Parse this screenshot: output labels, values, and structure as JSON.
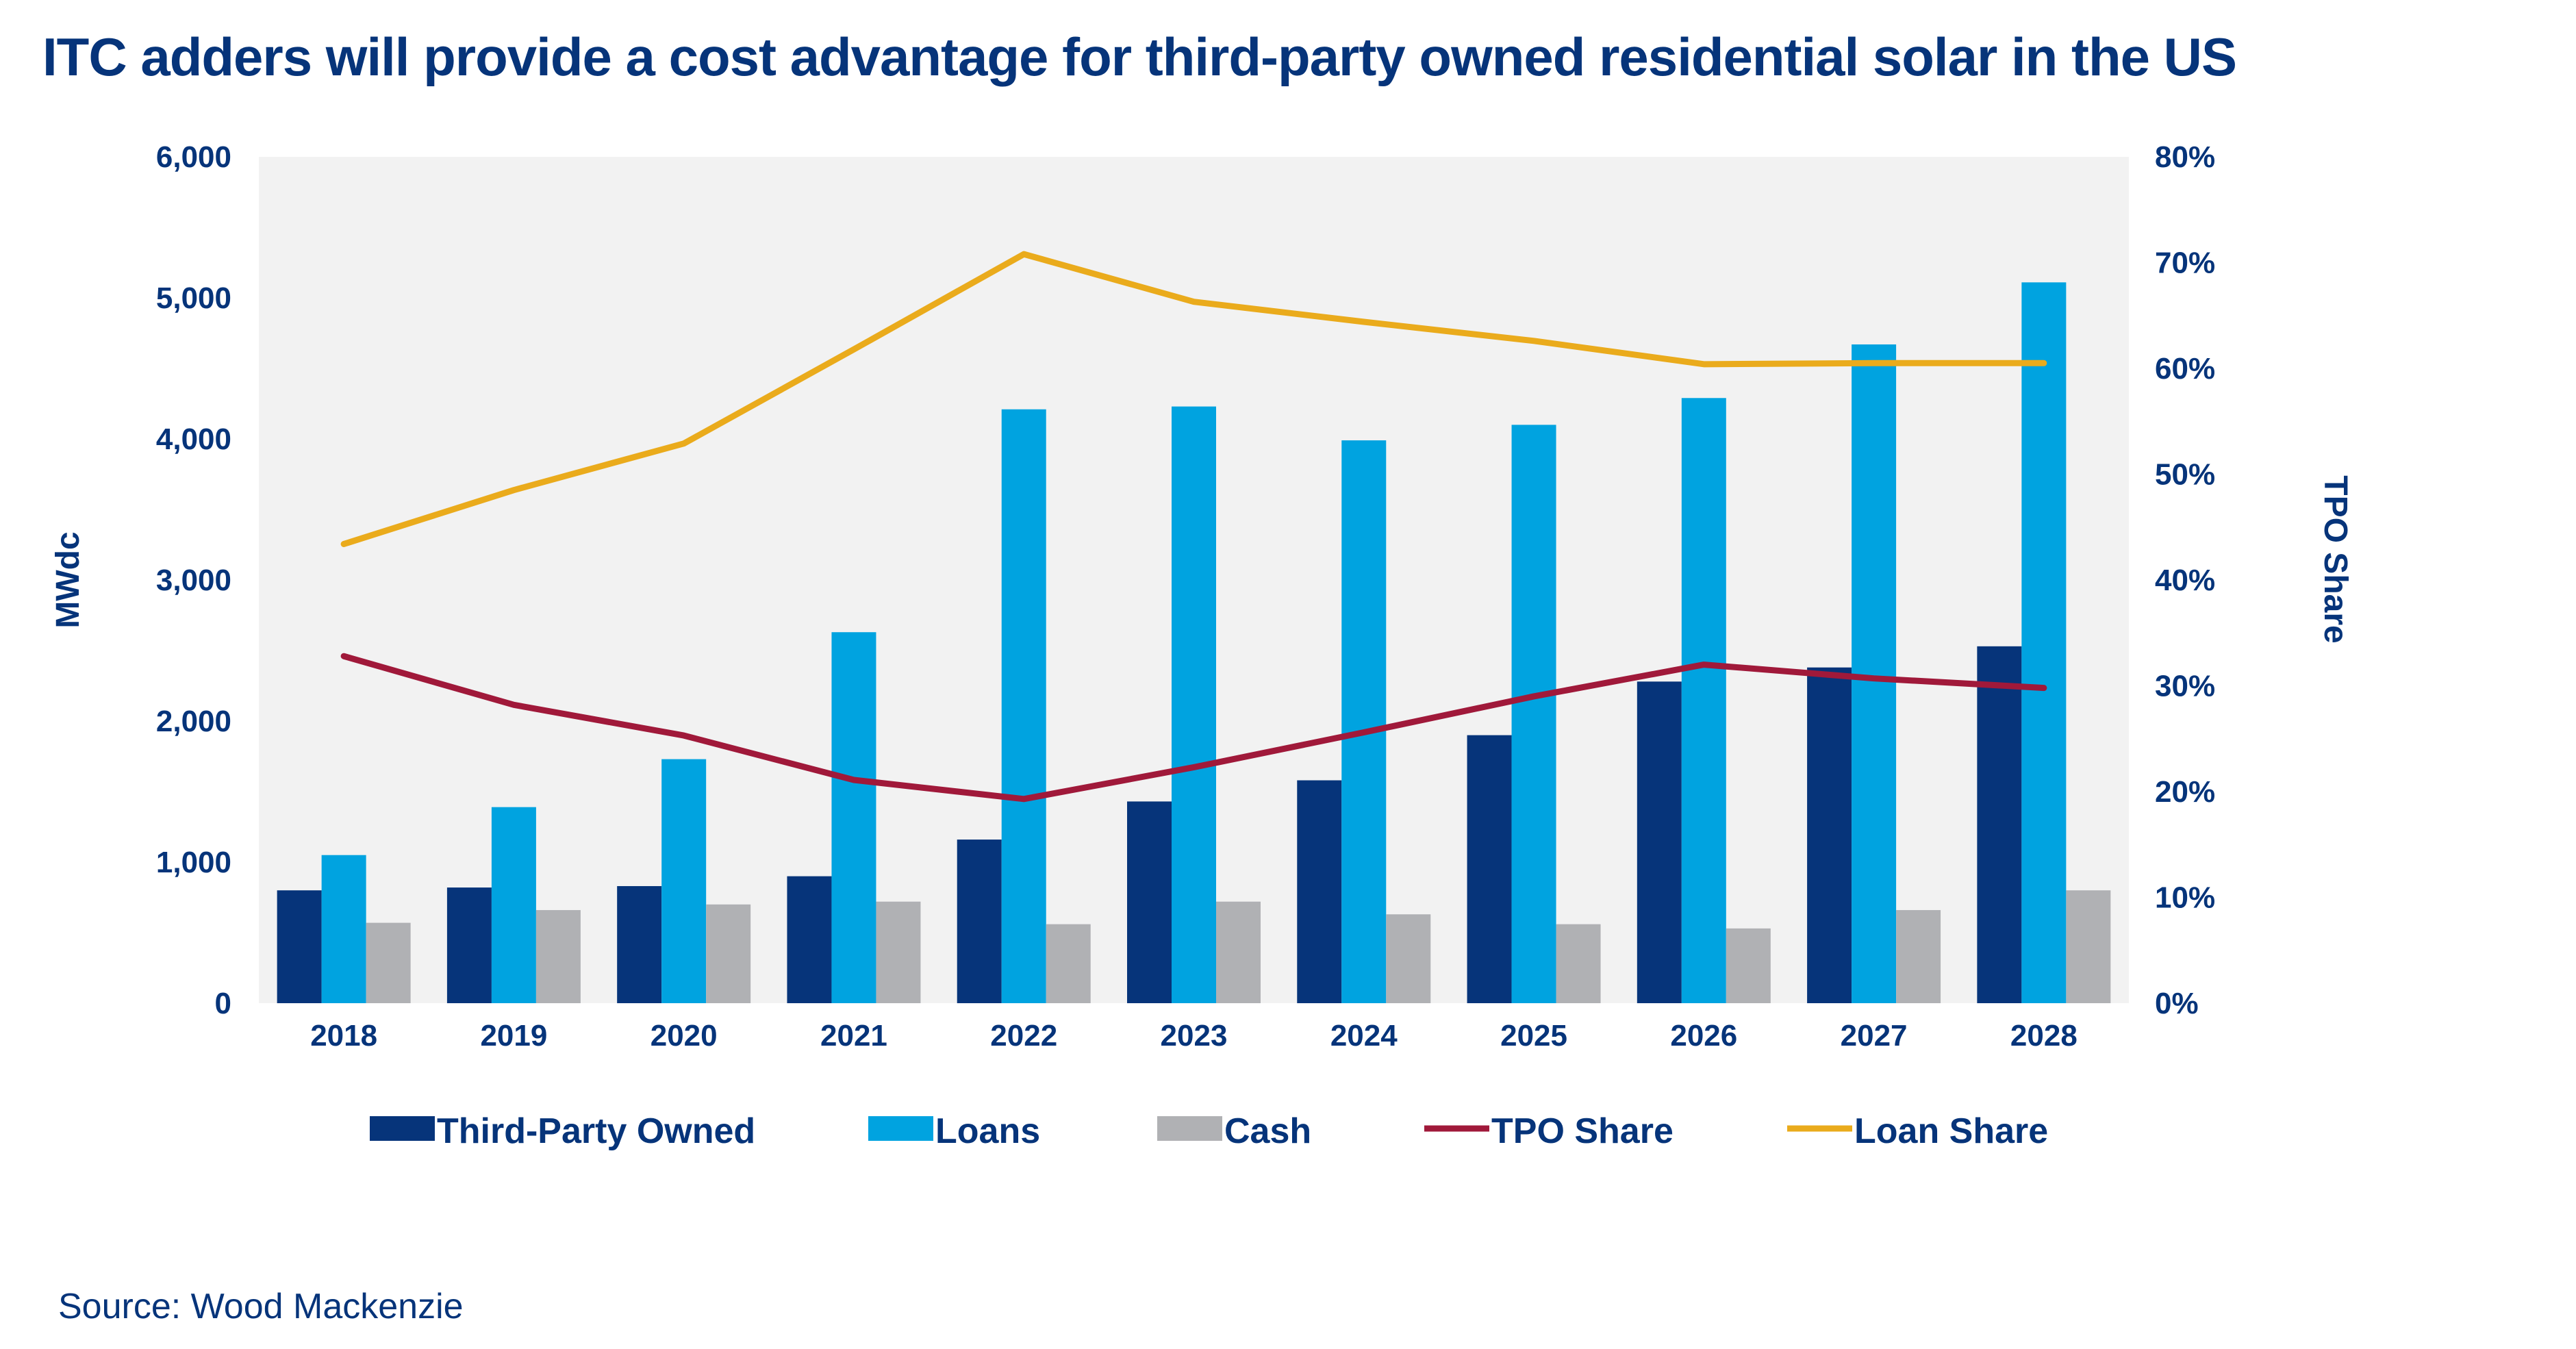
{
  "title": "ITC adders will provide a cost advantage for third-party owned residential solar in the US",
  "source": "Source: Wood Mackenzie",
  "chart_data": {
    "type": "bar",
    "title": "ITC adders will provide a cost advantage for third-party owned residential solar in the US",
    "categories": [
      "2018",
      "2019",
      "2020",
      "2021",
      "2022",
      "2023",
      "2024",
      "2025",
      "2026",
      "2027",
      "2028"
    ],
    "ylabel": "MWdc",
    "ylim": [
      0,
      6000
    ],
    "yticks": [
      "0",
      "1,000",
      "2,000",
      "3,000",
      "4,000",
      "5,000",
      "6,000"
    ],
    "y2label": "TPO Share",
    "y2lim": [
      0,
      80
    ],
    "y2ticks": [
      "0%",
      "10%",
      "20%",
      "30%",
      "40%",
      "50%",
      "60%",
      "70%",
      "80%"
    ],
    "grid": false,
    "legend": "bottom",
    "series": [
      {
        "name": "Third-Party Owned",
        "type": "bar",
        "axis": "left",
        "color": "#06347a",
        "values": [
          800,
          820,
          830,
          900,
          1160,
          1430,
          1580,
          1900,
          2280,
          2380,
          2530
        ]
      },
      {
        "name": "Loans",
        "type": "bar",
        "axis": "left",
        "color": "#00a3e0",
        "values": [
          1050,
          1390,
          1730,
          2630,
          4210,
          4230,
          3990,
          4100,
          4290,
          4670,
          5110
        ]
      },
      {
        "name": "Cash",
        "type": "bar",
        "axis": "left",
        "color": "#b0b1b4",
        "values": [
          570,
          660,
          700,
          720,
          560,
          720,
          630,
          560,
          530,
          660,
          800
        ]
      },
      {
        "name": "TPO Share",
        "type": "line",
        "axis": "right",
        "color": "#a0193a",
        "values": [
          32.8,
          28.2,
          25.3,
          21.1,
          19.3,
          22.3,
          25.6,
          29.0,
          32.0,
          30.7,
          29.8
        ]
      },
      {
        "name": "Loan Share",
        "type": "line",
        "axis": "right",
        "color": "#eaab1c",
        "values": [
          43.4,
          48.5,
          52.9,
          61.8,
          70.8,
          66.3,
          64.4,
          62.6,
          60.4,
          60.5,
          60.5
        ]
      }
    ],
    "plot_background": "#f2f2f2"
  }
}
